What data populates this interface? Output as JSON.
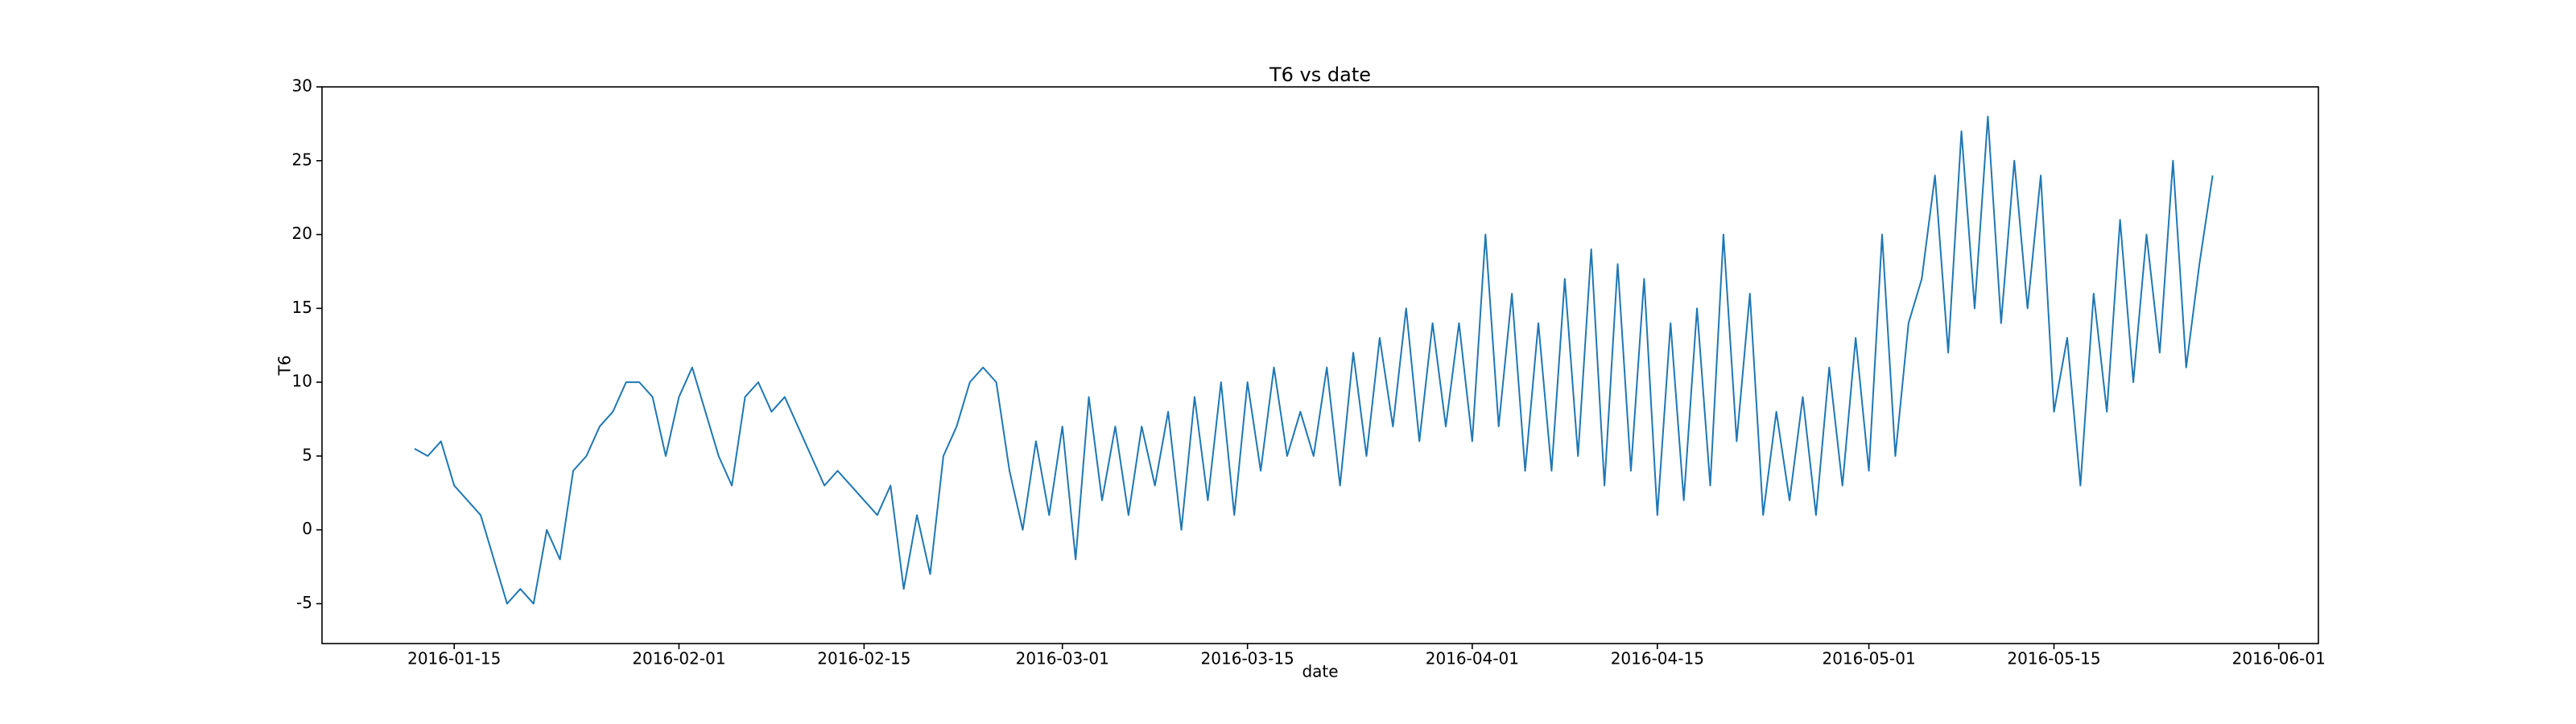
{
  "chart_data": {
    "type": "line",
    "title": "T6 vs date",
    "x_label": "date",
    "y_label": "T6",
    "x": [
      "2016-01-12",
      "2016-01-13",
      "2016-01-14",
      "2016-01-15",
      "2016-01-16",
      "2016-01-17",
      "2016-01-18",
      "2016-01-19",
      "2016-01-20",
      "2016-01-21",
      "2016-01-22",
      "2016-01-23",
      "2016-01-24",
      "2016-01-25",
      "2016-01-26",
      "2016-01-27",
      "2016-01-28",
      "2016-01-29",
      "2016-01-30",
      "2016-01-31",
      "2016-02-01",
      "2016-02-02",
      "2016-02-03",
      "2016-02-04",
      "2016-02-05",
      "2016-02-06",
      "2016-02-07",
      "2016-02-08",
      "2016-02-09",
      "2016-02-10",
      "2016-02-11",
      "2016-02-12",
      "2016-02-13",
      "2016-02-14",
      "2016-02-15",
      "2016-02-16",
      "2016-02-17",
      "2016-02-18",
      "2016-02-19",
      "2016-02-20",
      "2016-02-21",
      "2016-02-22",
      "2016-02-23",
      "2016-02-24",
      "2016-02-25",
      "2016-02-26",
      "2016-02-27",
      "2016-02-28",
      "2016-02-29",
      "2016-03-01",
      "2016-03-02",
      "2016-03-03",
      "2016-03-04",
      "2016-03-05",
      "2016-03-06",
      "2016-03-07",
      "2016-03-08",
      "2016-03-09",
      "2016-03-10",
      "2016-03-11",
      "2016-03-12",
      "2016-03-13",
      "2016-03-14",
      "2016-03-15",
      "2016-03-16",
      "2016-03-17",
      "2016-03-18",
      "2016-03-19",
      "2016-03-20",
      "2016-03-21",
      "2016-03-22",
      "2016-03-23",
      "2016-03-24",
      "2016-03-25",
      "2016-03-26",
      "2016-03-27",
      "2016-03-28",
      "2016-03-29",
      "2016-03-30",
      "2016-03-31",
      "2016-04-01",
      "2016-04-02",
      "2016-04-03",
      "2016-04-04",
      "2016-04-05",
      "2016-04-06",
      "2016-04-07",
      "2016-04-08",
      "2016-04-09",
      "2016-04-10",
      "2016-04-11",
      "2016-04-12",
      "2016-04-13",
      "2016-04-14",
      "2016-04-15",
      "2016-04-16",
      "2016-04-17",
      "2016-04-18",
      "2016-04-19",
      "2016-04-20",
      "2016-04-21",
      "2016-04-22",
      "2016-04-23",
      "2016-04-24",
      "2016-04-25",
      "2016-04-26",
      "2016-04-27",
      "2016-04-28",
      "2016-04-29",
      "2016-04-30",
      "2016-05-01",
      "2016-05-02",
      "2016-05-03",
      "2016-05-04",
      "2016-05-05",
      "2016-05-06",
      "2016-05-07",
      "2016-05-08",
      "2016-05-09",
      "2016-05-10",
      "2016-05-11",
      "2016-05-12",
      "2016-05-13",
      "2016-05-14",
      "2016-05-15",
      "2016-05-16",
      "2016-05-17",
      "2016-05-18",
      "2016-05-19",
      "2016-05-20",
      "2016-05-21",
      "2016-05-22",
      "2016-05-23",
      "2016-05-24",
      "2016-05-25",
      "2016-05-26",
      "2016-05-27"
    ],
    "series": [
      {
        "name": "T6",
        "color": "#1f77b4",
        "values": [
          5.5,
          5,
          6,
          3,
          2,
          1,
          -2,
          -5,
          -4,
          -5,
          0,
          -2,
          4,
          5,
          7,
          8,
          10,
          10,
          9,
          5,
          9,
          11,
          8,
          5,
          3,
          9,
          10,
          8,
          9,
          7,
          5,
          3,
          4,
          3,
          2,
          1,
          3,
          -4,
          1,
          -3,
          5,
          7,
          10,
          11,
          10,
          4,
          0,
          6,
          1,
          7,
          -2,
          9,
          2,
          7,
          1,
          7,
          3,
          8,
          0,
          9,
          2,
          10,
          1,
          10,
          4,
          11,
          5,
          8,
          5,
          11,
          3,
          12,
          5,
          13,
          7,
          15,
          6,
          14,
          7,
          14,
          6,
          20,
          7,
          16,
          4,
          14,
          4,
          17,
          5,
          19,
          3,
          18,
          4,
          17,
          1,
          14,
          2,
          15,
          3,
          20,
          6,
          16,
          1,
          8,
          2,
          9,
          1,
          11,
          3,
          13,
          4,
          20,
          5,
          14,
          17,
          24,
          12,
          27,
          15,
          28,
          14,
          25,
          15,
          24,
          8,
          13,
          3,
          16,
          8,
          21,
          10,
          20,
          12,
          25,
          11,
          18,
          24
        ]
      }
    ],
    "xlim": [
      "2016-01-05",
      "2016-06-04"
    ],
    "xticks": [
      "2016-01-15",
      "2016-02-01",
      "2016-02-15",
      "2016-03-01",
      "2016-03-15",
      "2016-04-01",
      "2016-04-15",
      "2016-05-01",
      "2016-05-15",
      "2016-06-01"
    ],
    "ylim": [
      -7.7,
      30
    ],
    "yticks": [
      -5,
      0,
      5,
      10,
      15,
      20,
      25,
      30
    ],
    "grid": false
  }
}
